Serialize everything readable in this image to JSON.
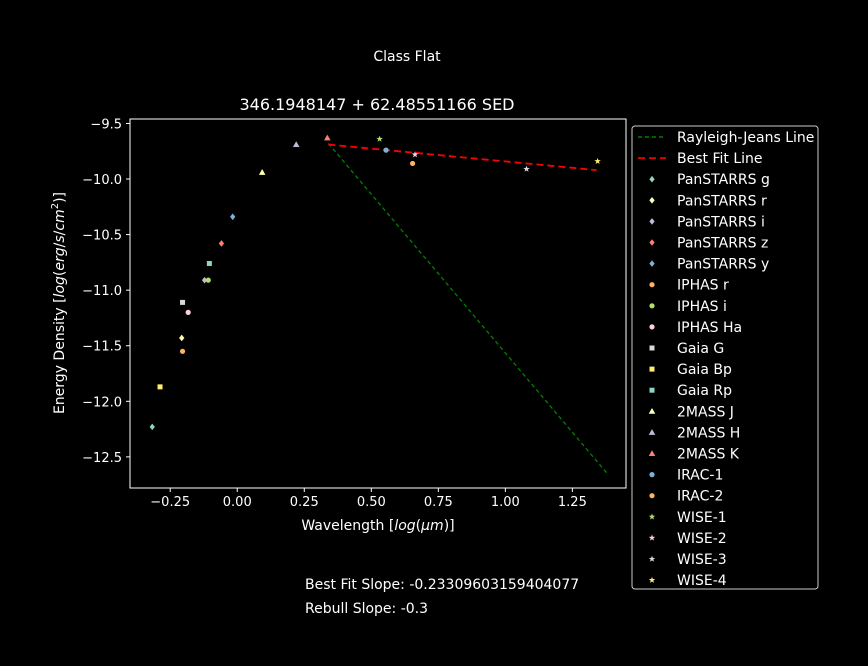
{
  "figure": {
    "suptitle": "Class Flat",
    "footer": {
      "best_fit": "Best Fit Slope: -0.23309603159404077",
      "rebull": "Rebull Slope: -0.3"
    }
  },
  "chart_data": {
    "type": "scatter",
    "title": "346.1948147 + 62.48551166 SED",
    "xlabel": "Wavelength [log(μm)]",
    "ylabel": "Energy Density [log(erg/s/cm²)]",
    "xlim": [
      -0.4,
      1.45
    ],
    "ylim": [
      -12.78,
      -9.46
    ],
    "xticks": [
      -0.25,
      0.0,
      0.25,
      0.5,
      0.75,
      1.0,
      1.25
    ],
    "xtick_labels": [
      "−0.25",
      "0.00",
      "0.25",
      "0.50",
      "0.75",
      "1.00",
      "1.25"
    ],
    "yticks": [
      -9.5,
      -10.0,
      -10.5,
      -11.0,
      -11.5,
      -12.0,
      -12.5
    ],
    "ytick_labels": [
      "−9.5",
      "−10.0",
      "−10.5",
      "−11.0",
      "−11.5",
      "−12.0",
      "−12.5"
    ],
    "grid": false,
    "legend_position": "outside-right",
    "lines": [
      {
        "name": "Rayleigh-Jeans Line",
        "color": "#008000",
        "dash": "4,3",
        "x": [
          0.34,
          1.38
        ],
        "y": [
          -9.68,
          -12.65
        ]
      },
      {
        "name": "Best Fit Line",
        "color": "#ff0000",
        "dash": "7,4",
        "x": [
          0.34,
          1.34
        ],
        "y": [
          -9.69,
          -9.92
        ]
      }
    ],
    "series": [
      {
        "name": "PanSTARRS g",
        "marker": "diamond",
        "color": "#8dd3c7",
        "x": [
          -0.317
        ],
        "y": [
          -12.23
        ]
      },
      {
        "name": "PanSTARRS r",
        "marker": "diamond",
        "color": "#ffffb3",
        "x": [
          -0.207
        ],
        "y": [
          -11.43
        ]
      },
      {
        "name": "PanSTARRS i",
        "marker": "diamond",
        "color": "#bebada",
        "x": [
          -0.122
        ],
        "y": [
          -10.91
        ]
      },
      {
        "name": "PanSTARRS z",
        "marker": "diamond",
        "color": "#fb8072",
        "x": [
          -0.059
        ],
        "y": [
          -10.58
        ]
      },
      {
        "name": "PanSTARRS y",
        "marker": "diamond",
        "color": "#80b1d3",
        "x": [
          -0.017
        ],
        "y": [
          -10.34
        ]
      },
      {
        "name": "IPHAS r",
        "marker": "circle",
        "color": "#fdb462",
        "x": [
          -0.204
        ],
        "y": [
          -11.55
        ]
      },
      {
        "name": "IPHAS i",
        "marker": "circle",
        "color": "#b3de69",
        "x": [
          -0.108
        ],
        "y": [
          -10.91
        ]
      },
      {
        "name": "IPHAS Ha",
        "marker": "circle",
        "color": "#fccde5",
        "x": [
          -0.183
        ],
        "y": [
          -11.2
        ]
      },
      {
        "name": "Gaia G",
        "marker": "square",
        "color": "#d9d9d9",
        "x": [
          -0.204
        ],
        "y": [
          -11.11
        ]
      },
      {
        "name": "Gaia Bp",
        "marker": "square",
        "color": "#ffed6f",
        "x": [
          -0.288
        ],
        "y": [
          -11.87
        ]
      },
      {
        "name": "Gaia Rp",
        "marker": "square",
        "color": "#8dd3c7",
        "x": [
          -0.104
        ],
        "y": [
          -10.76
        ]
      },
      {
        "name": "2MASS J",
        "marker": "triangle",
        "color": "#ffffb3",
        "x": [
          0.093
        ],
        "y": [
          -9.94
        ]
      },
      {
        "name": "2MASS H",
        "marker": "triangle",
        "color": "#bebada",
        "x": [
          0.22
        ],
        "y": [
          -9.69
        ]
      },
      {
        "name": "2MASS K",
        "marker": "triangle",
        "color": "#fb8072",
        "x": [
          0.336
        ],
        "y": [
          -9.63
        ]
      },
      {
        "name": "IRAC-1",
        "marker": "circle",
        "color": "#80b1d3",
        "x": [
          0.555
        ],
        "y": [
          -9.74
        ]
      },
      {
        "name": "IRAC-2",
        "marker": "circle",
        "color": "#fdb462",
        "x": [
          0.654
        ],
        "y": [
          -9.86
        ]
      },
      {
        "name": "WISE-1",
        "marker": "star",
        "color": "#b3de69",
        "x": [
          0.531
        ],
        "y": [
          -9.64
        ]
      },
      {
        "name": "WISE-2",
        "marker": "star",
        "color": "#fccde5",
        "x": [
          0.663
        ],
        "y": [
          -9.78
        ]
      },
      {
        "name": "WISE-3",
        "marker": "star",
        "color": "#d9d9d9",
        "x": [
          1.079
        ],
        "y": [
          -9.91
        ]
      },
      {
        "name": "WISE-4",
        "marker": "star",
        "color": "#ffed6f",
        "x": [
          1.344
        ],
        "y": [
          -9.84
        ]
      }
    ]
  }
}
